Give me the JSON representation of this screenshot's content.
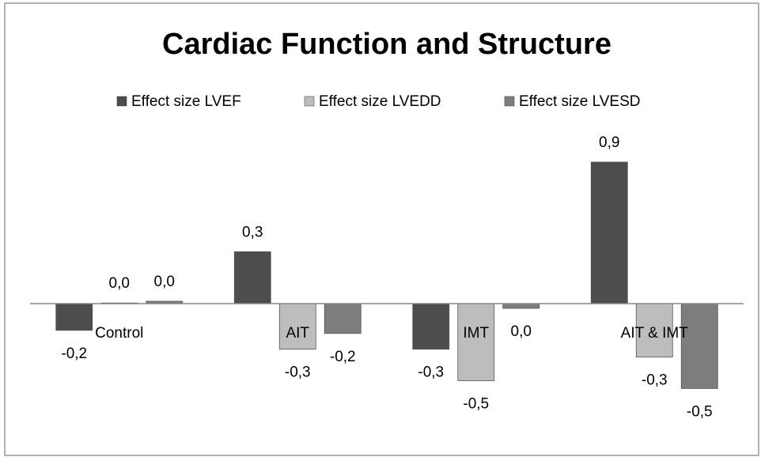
{
  "chart_data": {
    "type": "bar",
    "title": "Cardiac Function and Structure",
    "categories": [
      "Control",
      "AIT",
      "IMT",
      "AIT & IMT"
    ],
    "series": [
      {
        "name": "Effect size LVEF",
        "color": "#4d4d4d",
        "values": [
          -0.17,
          0.33,
          -0.29,
          0.9
        ],
        "value_labels": [
          "-0,2",
          "0,3",
          "-0,3",
          "0,9"
        ]
      },
      {
        "name": "Effect size LVEDD",
        "color": "#bdbdbd",
        "values": [
          0.004,
          -0.29,
          -0.49,
          -0.34
        ],
        "value_labels": [
          "0,0",
          "-0,3",
          "-0,5",
          "-0,3"
        ]
      },
      {
        "name": "Effect size LVESD",
        "color": "#7d7d7d",
        "values": [
          0.015,
          -0.19,
          -0.03,
          -0.54
        ],
        "value_labels": [
          "0,0",
          "-0,2",
          "0,0",
          "-0,5"
        ]
      }
    ]
  }
}
